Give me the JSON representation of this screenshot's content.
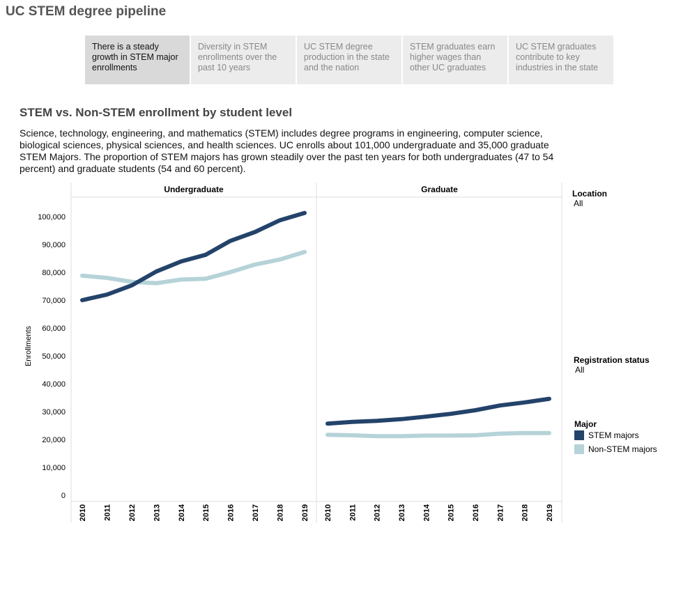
{
  "header": {
    "title": "UC STEM degree pipeline"
  },
  "tabs": [
    {
      "label": "There is a steady growth in STEM major enrollments",
      "active": true
    },
    {
      "label": "Diversity in STEM enrollments over the past 10 years",
      "active": false
    },
    {
      "label": "UC STEM degree production in the state and the nation",
      "active": false
    },
    {
      "label": "STEM graduates earn higher wages than other UC graduates",
      "active": false
    },
    {
      "label": "UC STEM graduates contribute to key industries in the state",
      "active": false
    }
  ],
  "section": {
    "title": "STEM vs. Non-STEM enrollment by student level",
    "description": "Science, technology, engineering, and mathematics (STEM) includes degree programs in engineering, computer science, biological sciences, physical sciences, and health sciences. UC enrolls about 101,000 undergraduate and 35,000 graduate STEM Majors. The proportion of STEM majors has grown steadily over the past ten years for both undergraduates (47 to 54 percent) and graduate students (54 and 60 percent)."
  },
  "filters": {
    "location": {
      "label": "Location",
      "value": "All"
    },
    "registration": {
      "label": "Registration status",
      "value": "All"
    }
  },
  "legend": {
    "title": "Major",
    "items": [
      {
        "name": "STEM majors",
        "color": "#24436b"
      },
      {
        "name": "Non-STEM majors",
        "color": "#b5d3d8"
      }
    ]
  },
  "chart_data": {
    "type": "line",
    "ylabel": "Enrollments",
    "ylim": [
      0,
      105000
    ],
    "yticks": [
      0,
      10000,
      20000,
      30000,
      40000,
      50000,
      60000,
      70000,
      80000,
      90000,
      100000
    ],
    "ytick_labels": [
      "0",
      "10,000",
      "20,000",
      "30,000",
      "40,000",
      "50,000",
      "60,000",
      "70,000",
      "80,000",
      "90,000",
      "100,000"
    ],
    "x": [
      "2010",
      "2011",
      "2012",
      "2013",
      "2014",
      "2015",
      "2016",
      "2017",
      "2018",
      "2019"
    ],
    "panels": [
      {
        "name": "Undergraduate",
        "series": [
          {
            "name": "STEM majors",
            "color": "#24436b",
            "values": [
              70000,
              72000,
              75300,
              80300,
              83900,
              86300,
              91300,
              94500,
              98700,
              101300
            ]
          },
          {
            "name": "Non-STEM majors",
            "color": "#b5d3d8",
            "values": [
              78800,
              78000,
              76600,
              76100,
              77400,
              77700,
              80100,
              82800,
              84600,
              87300
            ]
          }
        ]
      },
      {
        "name": "Graduate",
        "series": [
          {
            "name": "STEM majors",
            "color": "#24436b",
            "values": [
              25700,
              26300,
              26700,
              27300,
              28200,
              29200,
              30500,
              32200,
              33300,
              34600
            ]
          },
          {
            "name": "Non-STEM majors",
            "color": "#b5d3d8",
            "values": [
              21700,
              21500,
              21200,
              21200,
              21400,
              21400,
              21500,
              22100,
              22300,
              22300
            ]
          }
        ]
      }
    ]
  }
}
